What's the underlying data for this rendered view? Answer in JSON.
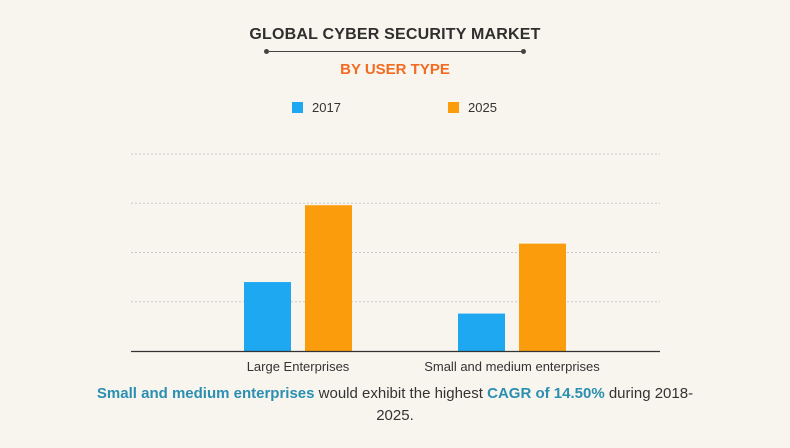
{
  "title": "GLOBAL CYBER SECURITY MARKET",
  "subtitle": "BY USER TYPE",
  "colors": {
    "accent": "#f26b21",
    "highlight": "#2a8fb1",
    "series_2017": "#1ea8f2",
    "series_2025": "#fa9c0c"
  },
  "chart_data": {
    "type": "bar",
    "categories": [
      "Large Enterprises",
      "Small and medium enterprises"
    ],
    "series": [
      {
        "name": "2017",
        "values": [
          1.4,
          0.76
        ]
      },
      {
        "name": "2025",
        "values": [
          2.96,
          2.18
        ]
      }
    ],
    "ylim": [
      0,
      4
    ],
    "grid": true,
    "legend": "top"
  },
  "footnote": {
    "part1": "Small and medium enterprises",
    "part2": " would exhibit the highest ",
    "part3": "CAGR of 14.50%",
    "part4": " during 2018-2025."
  }
}
